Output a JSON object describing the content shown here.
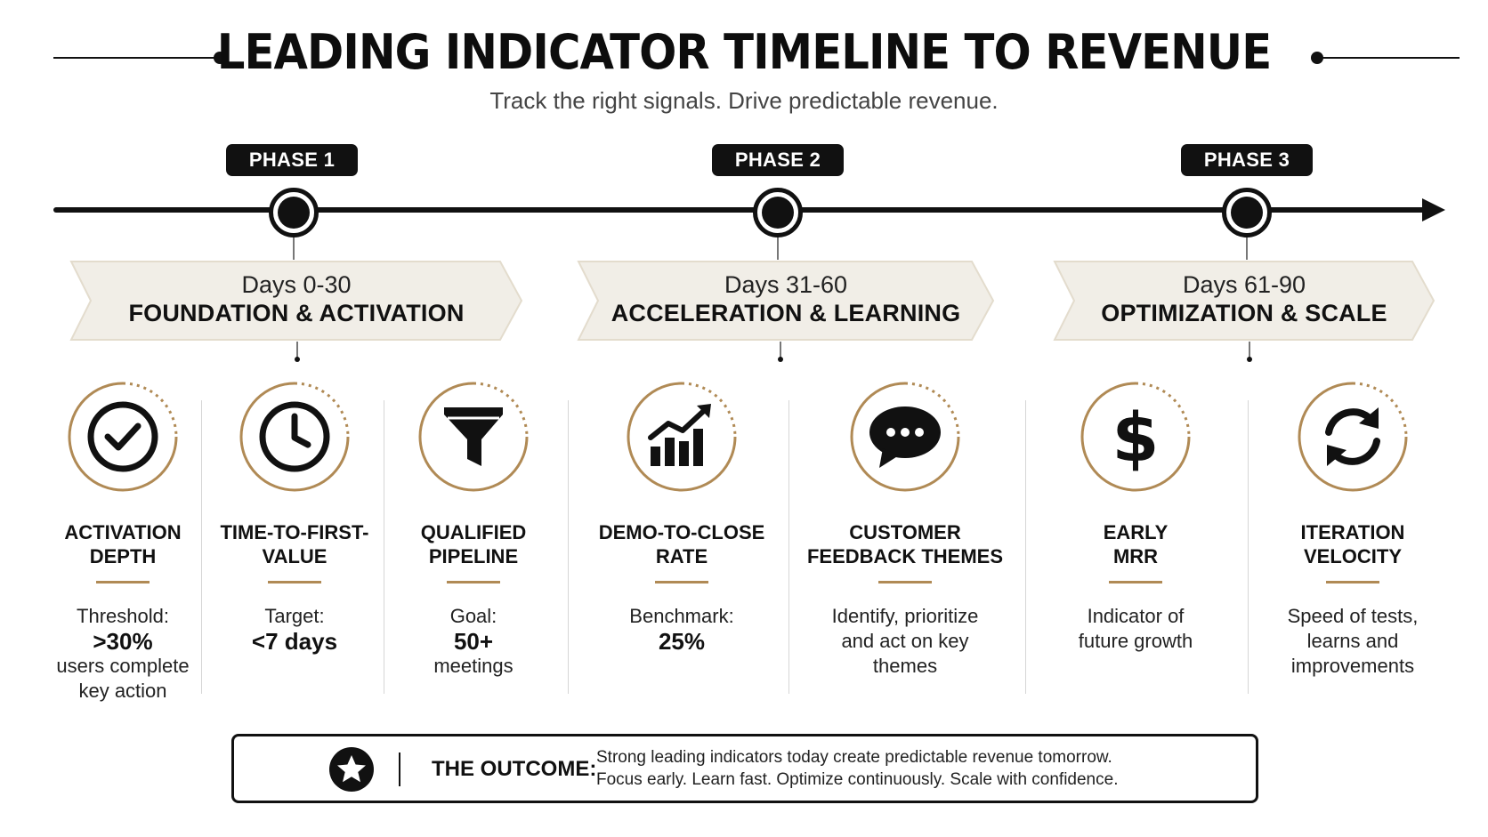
{
  "header": {
    "title": "LEADING INDICATOR TIMELINE TO REVENUE",
    "subtitle": "Track the right signals. Drive predictable revenue."
  },
  "colors": {
    "primary": "#111111",
    "accent_gold": "#b08a55",
    "chevron_fill": "#f1eee7"
  },
  "phases": [
    {
      "label": "PHASE 1",
      "days": "Days 0-30",
      "name": "FOUNDATION & ACTIVATION"
    },
    {
      "label": "PHASE 2",
      "days": "Days 31-60",
      "name": "ACCELERATION & LEARNING"
    },
    {
      "label": "PHASE 3",
      "days": "Days 61-90",
      "name": "OPTIMIZATION & SCALE"
    }
  ],
  "metrics": [
    {
      "icon": "checkmark-icon",
      "name": [
        "ACTIVATION",
        "DEPTH"
      ],
      "desc_label": "Threshold:",
      "desc_value": ">30%",
      "desc_rest": [
        "users complete",
        "key action"
      ]
    },
    {
      "icon": "clock-icon",
      "name": [
        "TIME-TO-FIRST-",
        "VALUE"
      ],
      "desc_label": "Target:",
      "desc_value": "<7 days",
      "desc_rest": []
    },
    {
      "icon": "funnel-icon",
      "name": [
        "QUALIFIED",
        "PIPELINE"
      ],
      "desc_label": "Goal:",
      "desc_value": "50+",
      "desc_rest": [
        "meetings"
      ]
    },
    {
      "icon": "growth-chart-icon",
      "name": [
        "DEMO-TO-CLOSE",
        "RATE"
      ],
      "desc_label": "Benchmark:",
      "desc_value": "25%",
      "desc_rest": []
    },
    {
      "icon": "chat-bubble-icon",
      "name": [
        "CUSTOMER",
        "FEEDBACK THEMES"
      ],
      "desc_label": "",
      "desc_value": "",
      "desc_rest": [
        "Identify, prioritize",
        "and act on key",
        "themes"
      ]
    },
    {
      "icon": "dollar-icon",
      "name": [
        "EARLY",
        "MRR"
      ],
      "desc_label": "",
      "desc_value": "",
      "desc_rest": [
        "Indicator of",
        "future growth"
      ]
    },
    {
      "icon": "refresh-cycle-icon",
      "name": [
        "ITERATION",
        "VELOCITY"
      ],
      "desc_label": "",
      "desc_value": "",
      "desc_rest": [
        "Speed of tests,",
        "learns and",
        "improvements"
      ]
    }
  ],
  "outcome": {
    "icon": "star-icon",
    "label": "THE OUTCOME:",
    "lines": [
      "Strong leading indicators today create predictable revenue tomorrow.",
      "Focus early. Learn fast. Optimize continuously. Scale with confidence."
    ]
  }
}
